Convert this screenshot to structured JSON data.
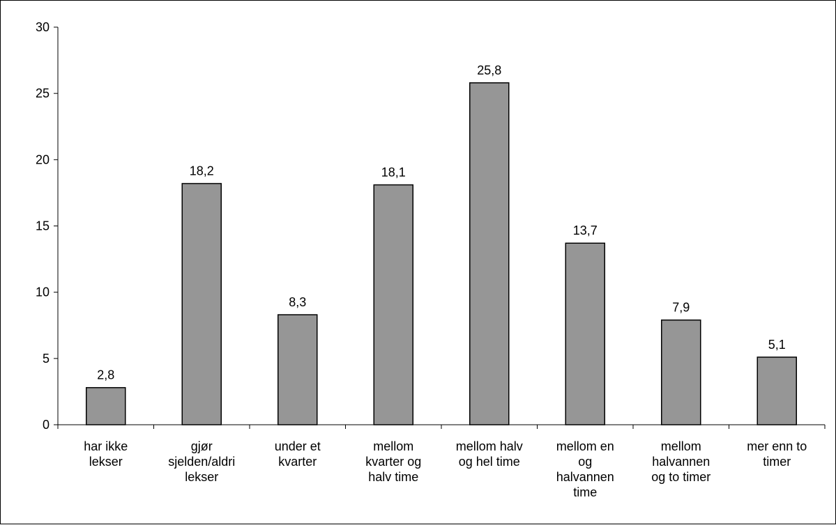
{
  "chart_data": {
    "type": "bar",
    "title": "",
    "xlabel": "",
    "ylabel": "",
    "ylim": [
      0,
      30
    ],
    "yticks": [
      0,
      5,
      10,
      15,
      20,
      25,
      30
    ],
    "ytick_labels": [
      "0",
      "5",
      "10",
      "15",
      "20",
      "25",
      "30"
    ],
    "grid": false,
    "legend": "none",
    "bar_color": "#969696",
    "bar_edge_color": "#000000",
    "categories": [
      [
        "har ikke",
        "lekser"
      ],
      [
        "gjør",
        "sjelden/aldri",
        "lekser"
      ],
      [
        "under et",
        "kvarter"
      ],
      [
        "mellom",
        "kvarter og",
        "halv time"
      ],
      [
        "mellom halv",
        "og hel time"
      ],
      [
        "mellom en",
        "og",
        "halvannen",
        "time"
      ],
      [
        "mellom",
        "halvannen",
        "og to timer"
      ],
      [
        "mer enn to",
        "timer"
      ]
    ],
    "values": [
      2.8,
      18.2,
      8.3,
      18.1,
      25.8,
      13.7,
      7.9,
      5.1
    ],
    "value_labels": [
      "2,8",
      "18,2",
      "8,3",
      "18,1",
      "25,8",
      "13,7",
      "7,9",
      "5,1"
    ]
  }
}
